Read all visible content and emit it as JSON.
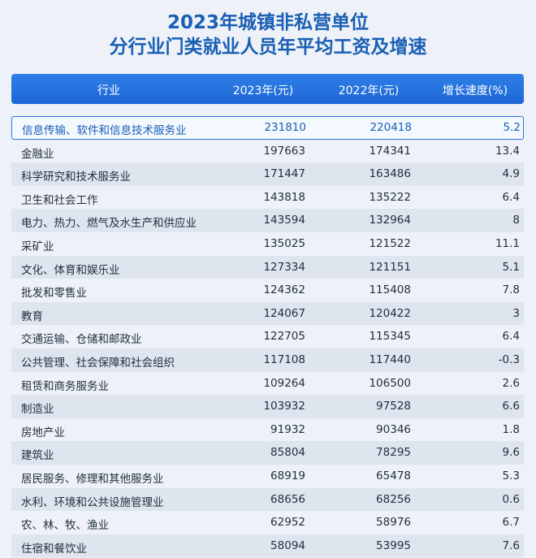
{
  "title": {
    "line1": "2023年城镇非私营单位",
    "line2": "分行业门类就业人员年平均工资及增速"
  },
  "header": {
    "industry": "行业",
    "y2023": "2023年(元)",
    "y2022": "2022年(元)",
    "rate": "增长速度(%)"
  },
  "rows": [
    {
      "name": "信息传输、软件和信息技术服务业",
      "y2023": "231810",
      "y2022": "220418",
      "rate": "5.2"
    },
    {
      "name": "金融业",
      "y2023": "197663",
      "y2022": "174341",
      "rate": "13.4"
    },
    {
      "name": "科学研究和技术服务业",
      "y2023": "171447",
      "y2022": "163486",
      "rate": "4.9"
    },
    {
      "name": "卫生和社会工作",
      "y2023": "143818",
      "y2022": "135222",
      "rate": "6.4"
    },
    {
      "name": "电力、热力、燃气及水生产和供应业",
      "y2023": "143594",
      "y2022": "132964",
      "rate": "8"
    },
    {
      "name": "采矿业",
      "y2023": "135025",
      "y2022": "121522",
      "rate": "11.1"
    },
    {
      "name": "文化、体育和娱乐业",
      "y2023": "127334",
      "y2022": "121151",
      "rate": "5.1"
    },
    {
      "name": "批发和零售业",
      "y2023": "124362",
      "y2022": "115408",
      "rate": "7.8"
    },
    {
      "name": "教育",
      "y2023": "124067",
      "y2022": "120422",
      "rate": "3"
    },
    {
      "name": "交通运输、仓储和邮政业",
      "y2023": "122705",
      "y2022": "115345",
      "rate": "6.4"
    },
    {
      "name": "公共管理、社会保障和社会组织",
      "y2023": "117108",
      "y2022": "117440",
      "rate": "-0.3"
    },
    {
      "name": "租赁和商务服务业",
      "y2023": "109264",
      "y2022": "106500",
      "rate": "2.6"
    },
    {
      "name": "制造业",
      "y2023": "103932",
      "y2022": "97528",
      "rate": "6.6"
    },
    {
      "name": "房地产业",
      "y2023": "91932",
      "y2022": "90346",
      "rate": "1.8"
    },
    {
      "name": "建筑业",
      "y2023": "85804",
      "y2022": "78295",
      "rate": "9.6"
    },
    {
      "name": "居民服务、修理和其他服务业",
      "y2023": "68919",
      "y2022": "65478",
      "rate": "5.3"
    },
    {
      "name": "水利、环境和公共设施管理业",
      "y2023": "68656",
      "y2022": "68256",
      "rate": "0.6"
    },
    {
      "name": "农、林、牧、渔业",
      "y2023": "62952",
      "y2022": "58976",
      "rate": "6.7"
    },
    {
      "name": "住宿和餐饮业",
      "y2023": "58094",
      "y2022": "53995",
      "rate": "7.6"
    }
  ]
}
